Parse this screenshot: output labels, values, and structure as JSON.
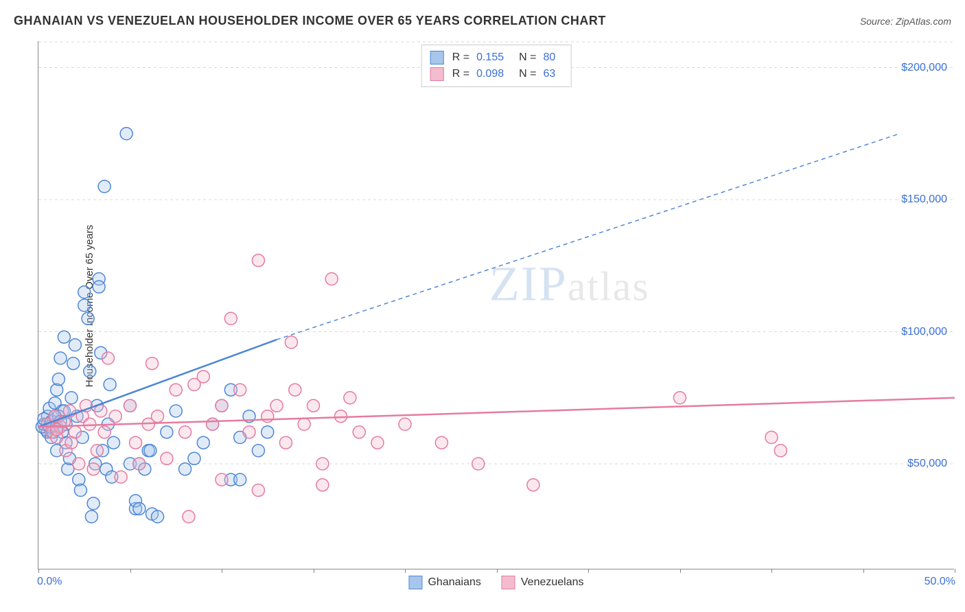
{
  "title": "GHANAIAN VS VENEZUELAN HOUSEHOLDER INCOME OVER 65 YEARS CORRELATION CHART",
  "source_label": "Source: ZipAtlas.com",
  "y_axis_label": "Householder Income Over 65 years",
  "watermark": {
    "part1": "ZIP",
    "part2": "atlas"
  },
  "chart": {
    "type": "scatter",
    "background_color": "#ffffff",
    "grid_color": "#d8d8d8",
    "axis_color": "#888888",
    "marker_radius": 9,
    "marker_stroke_width": 1.5,
    "marker_fill_opacity": 0.35,
    "xlim": [
      0,
      50
    ],
    "ylim": [
      10000,
      210000
    ],
    "x_ticks": [
      0,
      5,
      10,
      15,
      20,
      25,
      30,
      35,
      40,
      45,
      50
    ],
    "x_tick_labels": {
      "0": "0.0%",
      "50": "50.0%"
    },
    "y_ticks": [
      50000,
      100000,
      150000,
      200000
    ],
    "y_tick_labels": [
      "$50,000",
      "$100,000",
      "$150,000",
      "$200,000"
    ],
    "y_tick_label_color": "#3b6fd6",
    "x_tick_label_color": "#3b6fd6",
    "trend_line_width": 2.5,
    "trend_dash_pattern": "6,5"
  },
  "series": [
    {
      "name": "Ghanaians",
      "color_stroke": "#4e87d6",
      "color_fill": "#a8c6eb",
      "r_value": "0.155",
      "n_value": "80",
      "trend": {
        "x1": 0,
        "y1": 64000,
        "x2_solid": 13,
        "y2_solid": 97000,
        "x2_dash": 47,
        "y2_dash": 175000
      },
      "points": [
        [
          0.3,
          65000
        ],
        [
          0.4,
          63000
        ],
        [
          0.5,
          68000
        ],
        [
          0.5,
          62000
        ],
        [
          0.6,
          71000
        ],
        [
          0.7,
          60000
        ],
        [
          0.8,
          66000
        ],
        [
          0.9,
          73000
        ],
        [
          1.0,
          78000
        ],
        [
          1.0,
          55000
        ],
        [
          1.1,
          82000
        ],
        [
          1.2,
          90000
        ],
        [
          1.3,
          70000
        ],
        [
          1.4,
          98000
        ],
        [
          1.5,
          65000
        ],
        [
          1.5,
          58000
        ],
        [
          1.6,
          48000
        ],
        [
          1.7,
          52000
        ],
        [
          1.8,
          75000
        ],
        [
          1.9,
          88000
        ],
        [
          2.0,
          95000
        ],
        [
          2.1,
          68000
        ],
        [
          2.2,
          44000
        ],
        [
          2.3,
          40000
        ],
        [
          2.4,
          60000
        ],
        [
          2.5,
          115000
        ],
        [
          2.5,
          110000
        ],
        [
          2.7,
          105000
        ],
        [
          2.8,
          85000
        ],
        [
          2.9,
          30000
        ],
        [
          3.0,
          35000
        ],
        [
          3.1,
          50000
        ],
        [
          3.2,
          72000
        ],
        [
          3.3,
          120000
        ],
        [
          3.3,
          117000
        ],
        [
          3.4,
          92000
        ],
        [
          3.5,
          55000
        ],
        [
          3.6,
          155000
        ],
        [
          3.7,
          48000
        ],
        [
          3.8,
          65000
        ],
        [
          3.9,
          80000
        ],
        [
          4.0,
          45000
        ],
        [
          4.1,
          58000
        ],
        [
          4.8,
          175000
        ],
        [
          5.0,
          72000
        ],
        [
          5.0,
          50000
        ],
        [
          5.3,
          33000
        ],
        [
          5.3,
          36000
        ],
        [
          5.5,
          33000
        ],
        [
          5.5,
          50000
        ],
        [
          5.8,
          48000
        ],
        [
          6.0,
          55000
        ],
        [
          6.1,
          55000
        ],
        [
          6.2,
          31000
        ],
        [
          6.5,
          30000
        ],
        [
          7.0,
          62000
        ],
        [
          7.5,
          70000
        ],
        [
          8.0,
          48000
        ],
        [
          8.5,
          52000
        ],
        [
          9.0,
          58000
        ],
        [
          9.5,
          65000
        ],
        [
          10.0,
          72000
        ],
        [
          10.5,
          44000
        ],
        [
          10.5,
          78000
        ],
        [
          11.0,
          60000
        ],
        [
          11.0,
          44000
        ],
        [
          11.5,
          68000
        ],
        [
          12.0,
          55000
        ],
        [
          12.5,
          62000
        ],
        [
          0.2,
          64000
        ],
        [
          0.3,
          67000
        ],
        [
          0.6,
          64000
        ],
        [
          0.7,
          66000
        ],
        [
          1.0,
          64000
        ],
        [
          1.1,
          68000
        ],
        [
          1.3,
          62000
        ],
        [
          1.4,
          70000
        ],
        [
          0.8,
          62000
        ],
        [
          0.9,
          68000
        ],
        [
          1.2,
          66000
        ]
      ]
    },
    {
      "name": "Venezuelans",
      "color_stroke": "#e57ba0",
      "color_fill": "#f4bccf",
      "r_value": "0.098",
      "n_value": "63",
      "trend": {
        "x1": 0,
        "y1": 64000,
        "x2_solid": 50,
        "y2_solid": 75000,
        "x2_dash": 50,
        "y2_dash": 75000
      },
      "points": [
        [
          0.5,
          65000
        ],
        [
          0.7,
          62000
        ],
        [
          0.9,
          68000
        ],
        [
          1.0,
          60000
        ],
        [
          1.2,
          64000
        ],
        [
          1.4,
          66000
        ],
        [
          1.5,
          55000
        ],
        [
          1.7,
          70000
        ],
        [
          1.8,
          58000
        ],
        [
          2.0,
          62000
        ],
        [
          2.2,
          50000
        ],
        [
          2.4,
          68000
        ],
        [
          2.6,
          72000
        ],
        [
          2.8,
          65000
        ],
        [
          3.0,
          48000
        ],
        [
          3.2,
          55000
        ],
        [
          3.4,
          70000
        ],
        [
          3.6,
          62000
        ],
        [
          3.8,
          90000
        ],
        [
          4.2,
          68000
        ],
        [
          4.5,
          45000
        ],
        [
          5.0,
          72000
        ],
        [
          5.3,
          58000
        ],
        [
          5.5,
          50000
        ],
        [
          6.0,
          65000
        ],
        [
          6.2,
          88000
        ],
        [
          6.5,
          68000
        ],
        [
          7.0,
          52000
        ],
        [
          7.5,
          78000
        ],
        [
          8.0,
          62000
        ],
        [
          8.2,
          30000
        ],
        [
          8.5,
          80000
        ],
        [
          9.0,
          83000
        ],
        [
          9.5,
          65000
        ],
        [
          10.0,
          72000
        ],
        [
          10.0,
          44000
        ],
        [
          10.5,
          105000
        ],
        [
          11.0,
          78000
        ],
        [
          11.5,
          62000
        ],
        [
          12.0,
          40000
        ],
        [
          12.0,
          127000
        ],
        [
          12.5,
          68000
        ],
        [
          13.0,
          72000
        ],
        [
          13.5,
          58000
        ],
        [
          13.8,
          96000
        ],
        [
          14.0,
          78000
        ],
        [
          14.5,
          65000
        ],
        [
          15.0,
          72000
        ],
        [
          15.5,
          50000
        ],
        [
          15.5,
          42000
        ],
        [
          16.0,
          120000
        ],
        [
          16.5,
          68000
        ],
        [
          17.0,
          75000
        ],
        [
          17.5,
          62000
        ],
        [
          18.5,
          58000
        ],
        [
          20.0,
          65000
        ],
        [
          22.0,
          58000
        ],
        [
          24.0,
          50000
        ],
        [
          27.0,
          42000
        ],
        [
          35.0,
          75000
        ],
        [
          40.0,
          60000
        ],
        [
          40.5,
          55000
        ],
        [
          1.0,
          63000
        ]
      ]
    }
  ],
  "legend_bottom": [
    {
      "label": "Ghanaians",
      "swatch_fill": "#a8c6eb",
      "swatch_stroke": "#4e87d6"
    },
    {
      "label": "Venezuelans",
      "swatch_fill": "#f4bccf",
      "swatch_stroke": "#e57ba0"
    }
  ]
}
